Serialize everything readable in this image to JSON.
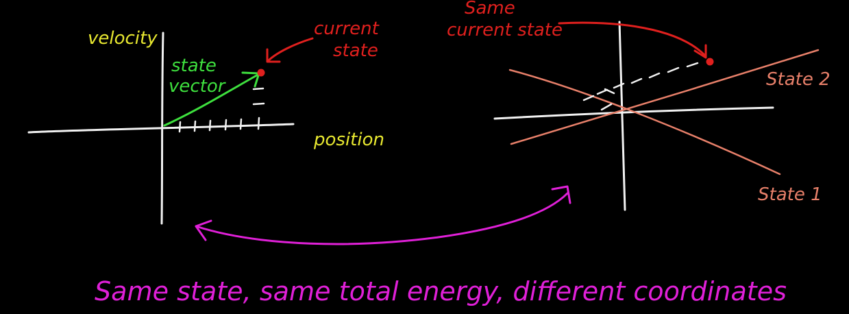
{
  "colors": {
    "background": "#000000",
    "axis": "#f2f2f2",
    "axis_label": "#e8e830",
    "state_vector": "#3ee03e",
    "current_state": "#e0201e",
    "rotated_axes": "#e8806a",
    "caption": "#e020d8"
  },
  "left_plot": {
    "y_axis_label": "velocity",
    "x_axis_label": "position",
    "vector_label_line1": "state",
    "vector_label_line2": "vector",
    "current_state_line1": "current",
    "current_state_line2": "state"
  },
  "right_plot": {
    "current_state_line1": "Same",
    "current_state_line2": "current state",
    "axis_label_upper": "State 2",
    "axis_label_lower": "State 1"
  },
  "caption": "Same state, same total energy, different coordinates"
}
